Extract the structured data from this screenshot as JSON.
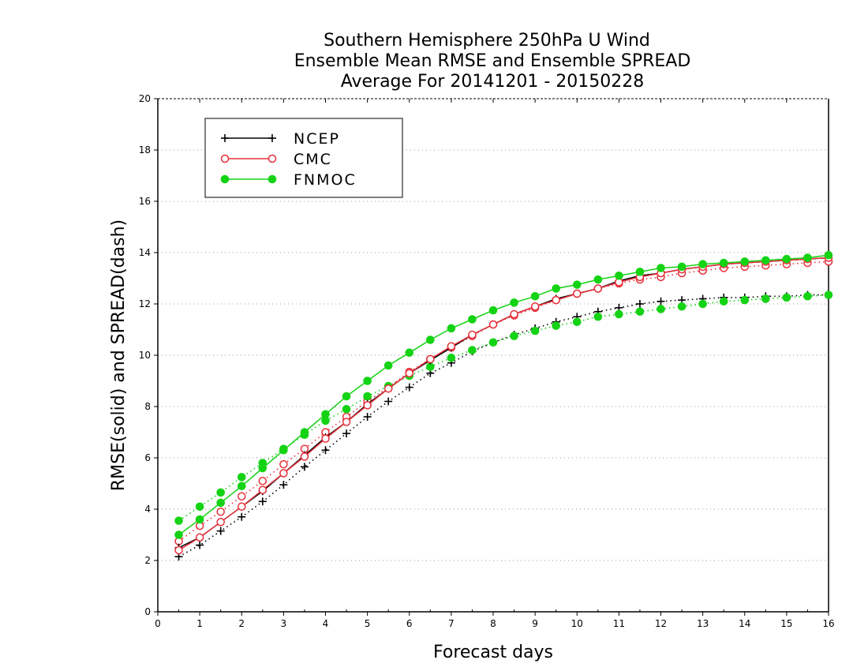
{
  "chart_data": {
    "type": "line",
    "title": [
      "Southern Hemisphere 250hPa U Wind",
      "Ensemble Mean RMSE and Ensemble SPREAD",
      "Average For 20141201 - 20150228"
    ],
    "xlabel": "Forecast days",
    "ylabel": "RMSE(solid) and SPREAD(dash)",
    "xlim": [
      0,
      16
    ],
    "ylim": [
      0,
      20
    ],
    "xticks": [
      0,
      1,
      2,
      3,
      4,
      5,
      6,
      7,
      8,
      9,
      10,
      11,
      12,
      13,
      14,
      15,
      16
    ],
    "yticks": [
      0,
      2,
      4,
      6,
      8,
      10,
      12,
      14,
      16,
      18,
      20
    ],
    "grid": "horizontal dotted",
    "legend_position": "top-left",
    "x": [
      0.5,
      1,
      1.5,
      2,
      2.5,
      3,
      3.5,
      4,
      4.5,
      5,
      5.5,
      6,
      6.5,
      7,
      7.5,
      8,
      8.5,
      9,
      9.5,
      10,
      10.5,
      11,
      11.5,
      12,
      12.5,
      13,
      13.5,
      14,
      14.5,
      15,
      15.5,
      16
    ],
    "series": [
      {
        "name": "NCEP",
        "metric": "RMSE",
        "style": "solid",
        "marker": "plus",
        "color": "#000000",
        "values": [
          2.5,
          2.9,
          3.5,
          4.1,
          4.7,
          5.4,
          6.1,
          6.8,
          7.4,
          8.1,
          8.7,
          9.3,
          9.8,
          10.3,
          10.8,
          11.2,
          11.6,
          11.9,
          12.2,
          12.4,
          12.6,
          12.9,
          13.1,
          13.2,
          13.35,
          13.45,
          13.55,
          13.6,
          13.65,
          13.7,
          13.75,
          13.8
        ]
      },
      {
        "name": "CMC",
        "metric": "RMSE",
        "style": "solid",
        "marker": "open-circle",
        "color": "#e8303a",
        "values": [
          2.4,
          2.9,
          3.5,
          4.1,
          4.75,
          5.4,
          6.05,
          6.75,
          7.4,
          8.05,
          8.7,
          9.3,
          9.85,
          10.35,
          10.8,
          11.2,
          11.6,
          11.9,
          12.15,
          12.4,
          12.6,
          12.85,
          13.05,
          13.2,
          13.35,
          13.45,
          13.55,
          13.6,
          13.65,
          13.7,
          13.75,
          13.8
        ]
      },
      {
        "name": "FNMOC",
        "metric": "RMSE",
        "style": "solid",
        "marker": "filled-circle",
        "color": "#14d314",
        "values": [
          3.0,
          3.6,
          4.25,
          4.9,
          5.6,
          6.3,
          7.0,
          7.7,
          8.4,
          9.0,
          9.6,
          10.1,
          10.6,
          11.05,
          11.4,
          11.75,
          12.05,
          12.3,
          12.6,
          12.75,
          12.95,
          13.1,
          13.25,
          13.4,
          13.45,
          13.55,
          13.6,
          13.65,
          13.7,
          13.75,
          13.8,
          13.9
        ]
      },
      {
        "name": "NCEP",
        "metric": "SPREAD",
        "style": "dotted",
        "marker": "plus",
        "color": "#000000",
        "values": [
          2.15,
          2.6,
          3.15,
          3.7,
          4.3,
          4.95,
          5.65,
          6.3,
          6.95,
          7.6,
          8.2,
          8.75,
          9.3,
          9.7,
          10.15,
          10.5,
          10.8,
          11.05,
          11.3,
          11.5,
          11.7,
          11.85,
          12.0,
          12.1,
          12.15,
          12.2,
          12.25,
          12.25,
          12.3,
          12.3,
          12.35,
          12.35
        ]
      },
      {
        "name": "CMC",
        "metric": "SPREAD",
        "style": "dotted",
        "marker": "open-circle",
        "color": "#e8303a",
        "values": [
          2.75,
          3.35,
          3.9,
          4.5,
          5.1,
          5.75,
          6.35,
          7.0,
          7.6,
          8.2,
          8.75,
          9.35,
          9.85,
          10.3,
          10.75,
          11.2,
          11.55,
          11.85,
          12.15,
          12.4,
          12.6,
          12.8,
          12.95,
          13.05,
          13.2,
          13.3,
          13.4,
          13.45,
          13.5,
          13.55,
          13.6,
          13.65
        ]
      },
      {
        "name": "FNMOC",
        "metric": "SPREAD",
        "style": "dotted",
        "marker": "filled-circle",
        "color": "#14d314",
        "values": [
          3.55,
          4.1,
          4.65,
          5.25,
          5.8,
          6.35,
          6.9,
          7.45,
          7.9,
          8.4,
          8.8,
          9.2,
          9.55,
          9.9,
          10.2,
          10.5,
          10.75,
          10.95,
          11.15,
          11.3,
          11.5,
          11.6,
          11.7,
          11.8,
          11.9,
          12.0,
          12.1,
          12.15,
          12.2,
          12.25,
          12.3,
          12.35
        ]
      }
    ],
    "legend": [
      {
        "label": "NCEP",
        "color": "#000000",
        "marker": "plus"
      },
      {
        "label": "CMC",
        "color": "#e8303a",
        "marker": "open-circle"
      },
      {
        "label": "FNMOC",
        "color": "#14d314",
        "marker": "filled-circle"
      }
    ]
  }
}
